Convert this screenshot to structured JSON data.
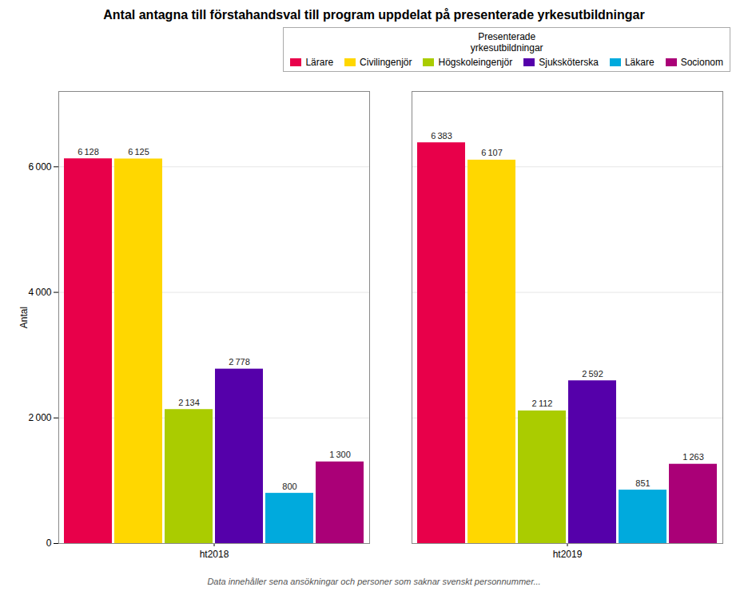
{
  "chart_data": {
    "type": "bar",
    "title": "Antal antagna till förstahandsval till program uppdelat på presenterade yrkesutbildningar",
    "ylabel": "Antal",
    "caption": "Data innehåller sena ansökningar och personer som saknar svenskt personnummer...",
    "legend_title": "Presenterade\nyrkesutbildningar",
    "legend": "upper right",
    "categories": [
      "ht2018",
      "ht2019"
    ],
    "series": [
      {
        "name": "Lärare",
        "color": "#E8004A",
        "values": [
          6128,
          6383
        ],
        "value_labels": [
          "6 128",
          "6 383"
        ]
      },
      {
        "name": "Civilingenjör",
        "color": "#FFD700",
        "values": [
          6125,
          6107
        ],
        "value_labels": [
          "6 125",
          "6 107"
        ]
      },
      {
        "name": "Högskoleingenjör",
        "color": "#AACC00",
        "values": [
          2134,
          2112
        ],
        "value_labels": [
          "2 134",
          "2 112"
        ]
      },
      {
        "name": "Sjuksköterska",
        "color": "#5500AA",
        "values": [
          2778,
          2592
        ],
        "value_labels": [
          "2 778",
          "2 592"
        ]
      },
      {
        "name": "Läkare",
        "color": "#00AADD",
        "values": [
          800,
          851
        ],
        "value_labels": [
          "800",
          "851"
        ]
      },
      {
        "name": "Socionom",
        "color": "#AA0077",
        "values": [
          1300,
          1263
        ],
        "value_labels": [
          "1 300",
          "1 263"
        ]
      }
    ],
    "ylim": [
      0,
      7200
    ],
    "yticks": [
      0,
      {
        "value": 2000,
        "label": "2 000"
      },
      {
        "value": 4000,
        "label": "4 000"
      },
      {
        "value": 6000,
        "label": "6 000"
      }
    ],
    "grid": true,
    "data_labels": true
  }
}
